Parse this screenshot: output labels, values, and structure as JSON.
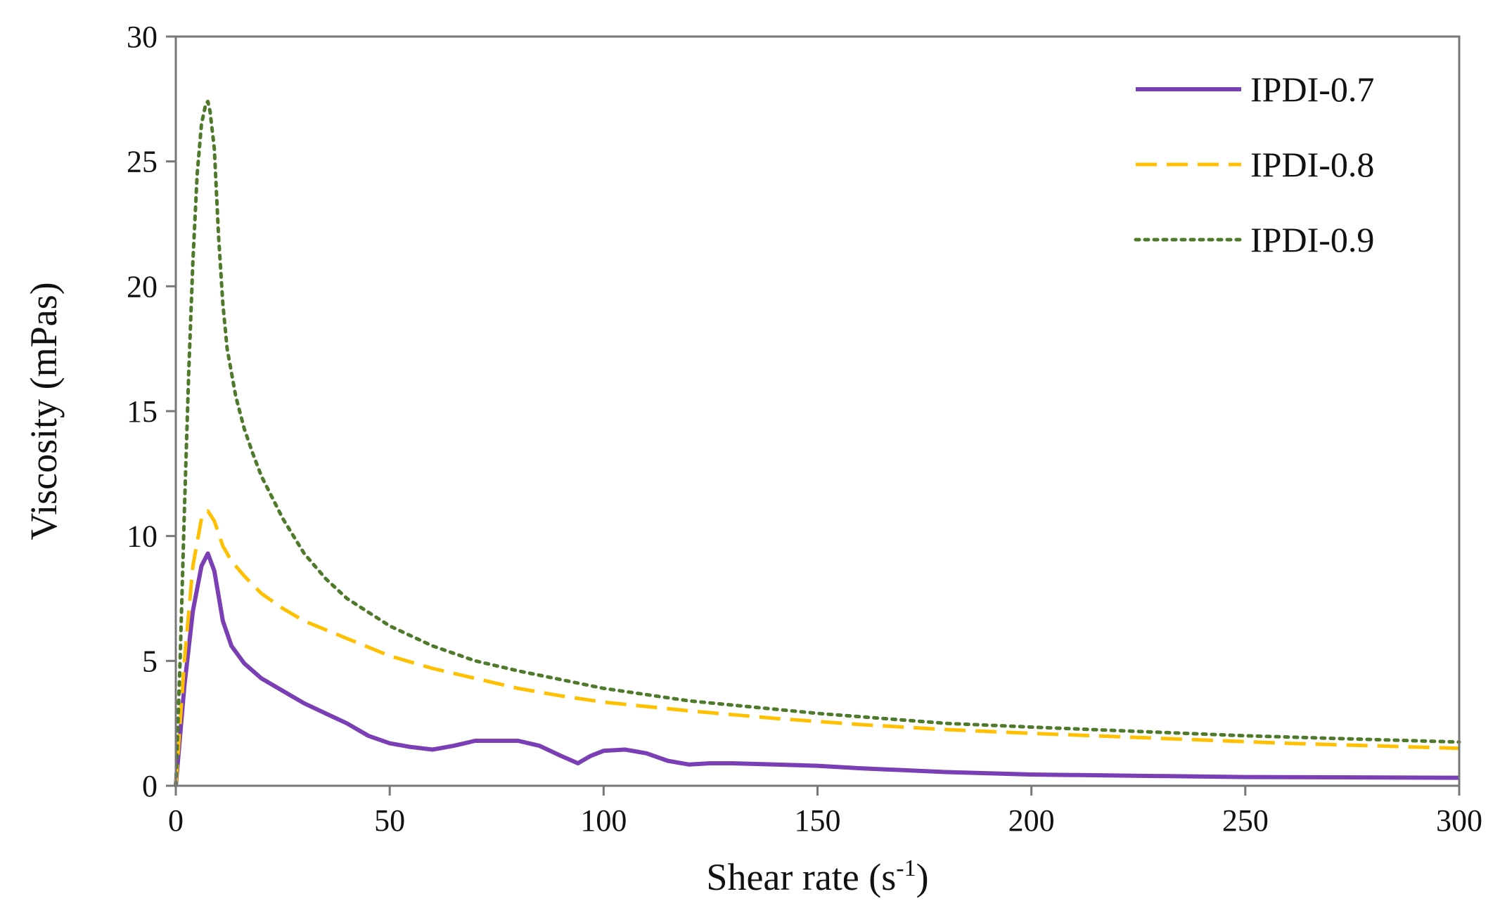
{
  "chart_data": {
    "type": "line",
    "title": "",
    "xlabel": "Shear rate (s",
    "xlabel_sup": "-1",
    "xlabel_end": ")",
    "ylabel": "Viscosity (mPas)",
    "xlim": [
      0,
      300
    ],
    "ylim": [
      0,
      30
    ],
    "xticks": [
      0,
      50,
      100,
      150,
      200,
      250,
      300
    ],
    "yticks": [
      0,
      5,
      10,
      15,
      20,
      25,
      30
    ],
    "grid": false,
    "legend_position": "top-right",
    "series": [
      {
        "name": "IPDI-0.7",
        "color": "#7a3fb5",
        "style": "solid",
        "x": [
          0,
          2,
          4,
          6,
          7.5,
          9,
          11,
          13,
          16,
          20,
          25,
          30,
          35,
          40,
          45,
          50,
          55,
          60,
          65,
          70,
          75,
          80,
          85,
          90,
          94,
          97,
          100,
          105,
          110,
          115,
          120,
          125,
          130,
          140,
          150,
          160,
          180,
          200,
          250,
          300
        ],
        "y": [
          0,
          4.0,
          7.0,
          8.8,
          9.3,
          8.6,
          6.6,
          5.6,
          4.9,
          4.3,
          3.8,
          3.3,
          2.9,
          2.5,
          2.0,
          1.7,
          1.55,
          1.45,
          1.6,
          1.8,
          1.8,
          1.8,
          1.6,
          1.2,
          0.9,
          1.2,
          1.4,
          1.45,
          1.3,
          1.0,
          0.85,
          0.9,
          0.9,
          0.85,
          0.8,
          0.7,
          0.55,
          0.45,
          0.35,
          0.32
        ]
      },
      {
        "name": "IPDI-0.8",
        "color": "#fec000",
        "style": "dashed",
        "x": [
          0,
          2,
          4,
          6,
          7.5,
          9,
          11,
          13,
          16,
          20,
          25,
          30,
          40,
          50,
          60,
          70,
          80,
          90,
          100,
          120,
          140,
          160,
          180,
          200,
          230,
          260,
          300
        ],
        "y": [
          0,
          5.0,
          8.8,
          10.7,
          11.0,
          10.6,
          9.6,
          9.0,
          8.4,
          7.7,
          7.1,
          6.6,
          5.9,
          5.2,
          4.7,
          4.3,
          3.9,
          3.6,
          3.35,
          3.0,
          2.7,
          2.45,
          2.25,
          2.1,
          1.9,
          1.7,
          1.5
        ]
      },
      {
        "name": "IPDI-0.9",
        "color": "#4f7a2c",
        "style": "dotted",
        "x": [
          0,
          1,
          2,
          3,
          4,
          5,
          6,
          7,
          7.5,
          8,
          9,
          10,
          11,
          12,
          14,
          16,
          18,
          20,
          25,
          30,
          35,
          40,
          50,
          60,
          70,
          80,
          100,
          120,
          150,
          180,
          200,
          250,
          300
        ],
        "y": [
          0,
          5.0,
          11.0,
          16.5,
          21.0,
          24.5,
          26.5,
          27.3,
          27.4,
          27.0,
          25.5,
          22.0,
          19.3,
          17.5,
          15.6,
          14.3,
          13.3,
          12.4,
          10.7,
          9.3,
          8.3,
          7.5,
          6.4,
          5.6,
          5.0,
          4.6,
          3.9,
          3.4,
          2.9,
          2.5,
          2.35,
          2.0,
          1.75
        ]
      }
    ]
  }
}
